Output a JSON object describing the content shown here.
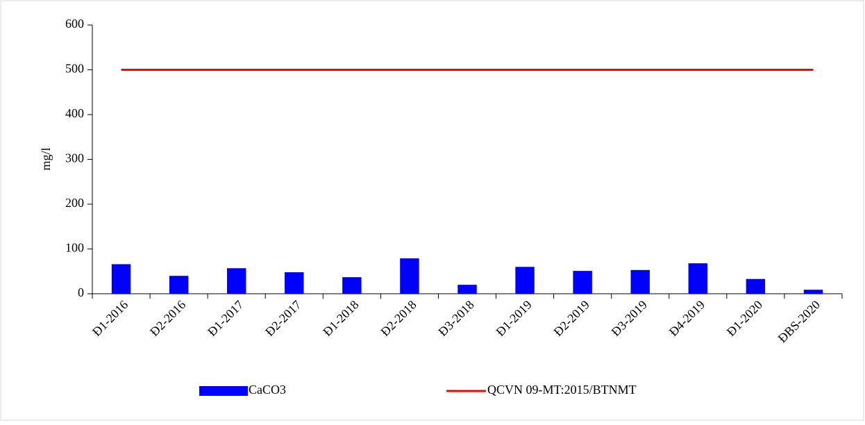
{
  "chart_data": {
    "type": "bar",
    "y_label": "mg/l",
    "categories": [
      "Đ1-2016",
      "Đ2-2016",
      "Đ1-2017",
      "Đ2-2017",
      "Đ1-2018",
      "Đ2-2018",
      "Đ3-2018",
      "Đ1-2019",
      "Đ2-2019",
      "Đ3-2019",
      "Đ4-2019",
      "Đ1-2020",
      "ĐBS-2020"
    ],
    "series": [
      {
        "name": "CaCO3",
        "color": "#0000ff",
        "type": "bar",
        "values": [
          66,
          40,
          57,
          48,
          37,
          79,
          20,
          60,
          51,
          53,
          68,
          33,
          9
        ]
      },
      {
        "name": "QCVN 09-MT:2015/BTNMT",
        "color": "#ff0000",
        "type": "line",
        "values": [
          500,
          500,
          500,
          500,
          500,
          500,
          500,
          500,
          500,
          500,
          500,
          500,
          500
        ]
      }
    ],
    "ylim": [
      0,
      600
    ],
    "yticks": [
      0,
      100,
      200,
      300,
      400,
      500,
      600
    ],
    "grid": false,
    "legend": "bottom"
  }
}
